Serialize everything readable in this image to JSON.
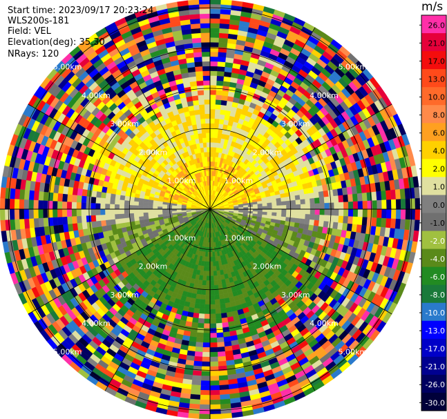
{
  "header": {
    "start_time": "Start time: 2023/09/17 20:23:24",
    "instrument": "WLS200s-181",
    "field": "Field: VEL",
    "elevation": "Elevation(deg): 35.30",
    "nrays": "NRays: 120"
  },
  "colorbar": {
    "unit": "m/s",
    "levels": [
      {
        "label": "26.0",
        "color": "#ff2fa8"
      },
      {
        "label": "21.0",
        "color": "#e6003a"
      },
      {
        "label": "17.0",
        "color": "#f40d0d"
      },
      {
        "label": "13.0",
        "color": "#ff4a1a"
      },
      {
        "label": "10.0",
        "color": "#ff6a2a"
      },
      {
        "label": "8.0",
        "color": "#ff8a4a"
      },
      {
        "label": "6.0",
        "color": "#ffa020"
      },
      {
        "label": "4.0",
        "color": "#ffd000"
      },
      {
        "label": "2.0",
        "color": "#ffff00"
      },
      {
        "label": "1.0",
        "color": "#e0e0a0"
      },
      {
        "label": "0.0",
        "color": "#808080"
      },
      {
        "label": "-1.0",
        "color": "#707070"
      },
      {
        "label": "-2.0",
        "color": "#a0c040"
      },
      {
        "label": "-4.0",
        "color": "#5a8a1a"
      },
      {
        "label": "-6.0",
        "color": "#228b22"
      },
      {
        "label": "-8.0",
        "color": "#1a7a3a"
      },
      {
        "label": "-10.0",
        "color": "#2a7acc"
      },
      {
        "label": "-13.0",
        "color": "#0000ff"
      },
      {
        "label": "-17.0",
        "color": "#0000c8"
      },
      {
        "label": "-21.0",
        "color": "#000090"
      },
      {
        "label": "-26.0",
        "color": "#000060"
      },
      {
        "label": "-30.0",
        "color": "#00003a"
      }
    ]
  },
  "rings": {
    "labels": [
      "1.00km",
      "2.00km",
      "3.00km",
      "4.00km",
      "5.00km"
    ]
  },
  "chart_data": {
    "type": "heatmap",
    "projection": "polar",
    "field": "VEL",
    "nrays": 120,
    "range_rings_km": [
      1,
      2,
      3,
      4,
      5
    ],
    "max_range_km": 5.0,
    "colorbar_unit": "m/s",
    "colorbar_ticks": [
      26.0,
      21.0,
      17.0,
      13.0,
      10.0,
      8.0,
      6.0,
      4.0,
      2.0,
      1.0,
      0.0,
      -1.0,
      -2.0,
      -4.0,
      -6.0,
      -8.0,
      -10.0,
      -13.0,
      -17.0,
      -21.0,
      -26.0,
      -30.0
    ]
  }
}
